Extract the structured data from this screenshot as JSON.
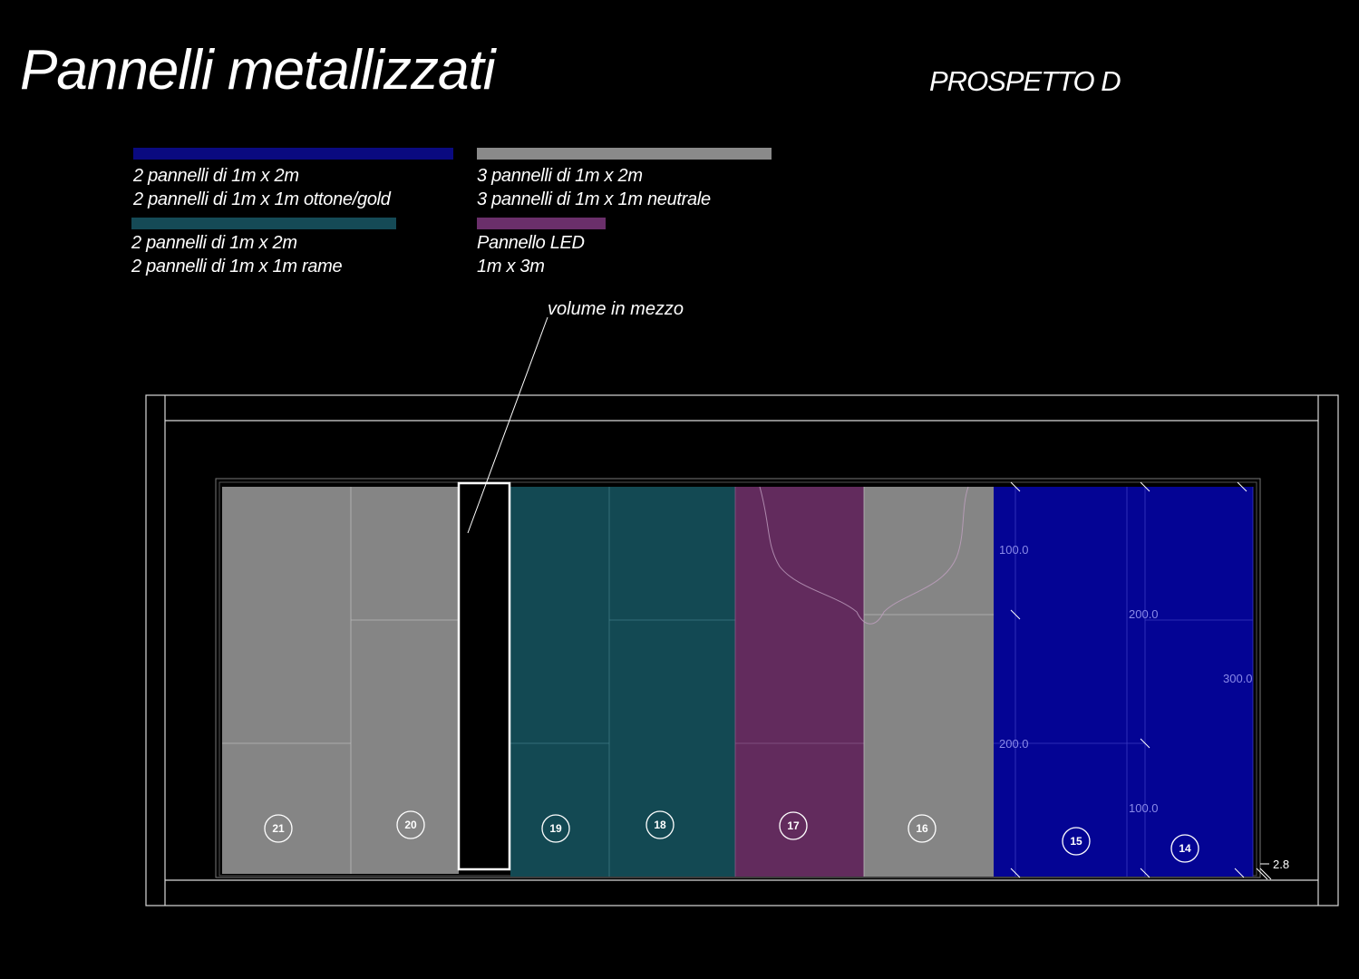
{
  "header": {
    "title": "Pannelli metallizzati",
    "subtitle": "PROSPETTO D"
  },
  "colors": {
    "gold": "#0a0a80",
    "neutral": "#8a8a8a",
    "copper": "#154a56",
    "led": "#6a2f6a",
    "blue_panels": "#040494",
    "grey_panels": "#858585",
    "teal_panels": "#134953",
    "purple_panels": "#622b5d",
    "line": "#d8d8d8",
    "dim_text": "#8a8ae8"
  },
  "legend": {
    "gold": {
      "line1": "2 pannelli di 1m x 2m",
      "line2": "2 pannelli di 1m x 1m ottone/gold"
    },
    "neutral": {
      "line1": "3 pannelli di 1m x 2m",
      "line2": "3 pannelli di 1m x 1m neutrale"
    },
    "copper": {
      "line1": "2 pannelli di 1m x 2m",
      "line2": "2 pannelli di 1m x 1m rame"
    },
    "led": {
      "line1": "Pannello LED",
      "line2": "1m x 3m"
    }
  },
  "annotation": "volume in mezzo",
  "panels": [
    {
      "number": "21"
    },
    {
      "number": "20"
    },
    {
      "number": "19"
    },
    {
      "number": "18"
    },
    {
      "number": "17"
    },
    {
      "number": "16"
    },
    {
      "number": "15"
    },
    {
      "number": "14"
    }
  ],
  "dimensions": {
    "d1": "100.0",
    "d2": "200.0",
    "d3": "200.0",
    "d4": "100.0",
    "d5": "300.0",
    "d6": "2.8"
  }
}
